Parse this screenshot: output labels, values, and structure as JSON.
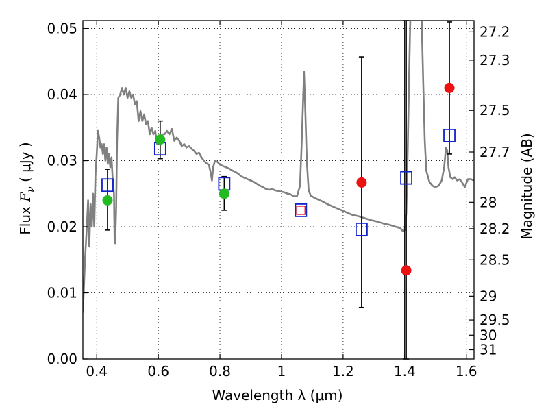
{
  "chart_data": {
    "type": "scatter",
    "title": "",
    "xlabel": "Wavelength  λ (μm)",
    "ylabel": "Flux  F_ν  ( μJy )",
    "ylabel_parts": {
      "prefix": "Flux  ",
      "var": "F",
      "sub": "ν",
      "units": "  ( μJy )"
    },
    "y2label": "Magnitude (AB)",
    "xlim": [
      0.355,
      1.625
    ],
    "ylim": [
      0.0,
      0.0512
    ],
    "grid": true,
    "x_ticks": [
      0.4,
      0.6,
      0.8,
      1.0,
      1.2,
      1.4,
      1.6
    ],
    "x_tick_labels": [
      "0.4",
      "0.6",
      "0.8",
      "1",
      "1.2",
      "1.4",
      "1.6"
    ],
    "y_ticks": [
      0.0,
      0.01,
      0.02,
      0.03,
      0.04,
      0.05
    ],
    "y_tick_labels": [
      "0.00",
      "0.01",
      "0.02",
      "0.03",
      "0.04",
      "0.05"
    ],
    "mag_ticks": [
      {
        "label": "27.2",
        "flux": 0.0495
      },
      {
        "label": "27.3",
        "flux": 0.0452
      },
      {
        "label": "27.5",
        "flux": 0.0376
      },
      {
        "label": "27.7",
        "flux": 0.0313
      },
      {
        "label": "28",
        "flux": 0.0237
      },
      {
        "label": "28.2",
        "flux": 0.0197
      },
      {
        "label": "28.5",
        "flux": 0.015
      },
      {
        "label": "29",
        "flux": 0.0095
      },
      {
        "label": "29.5",
        "flux": 0.0059
      },
      {
        "label": "30",
        "flux": 0.0036
      },
      {
        "label": "31",
        "flux": 0.0014
      }
    ],
    "series": [
      {
        "name": "observed-optical",
        "color": "#22bb22",
        "marker": "circle",
        "points": [
          {
            "x": 0.435,
            "y": 0.024,
            "yerr": [
              0.0195,
              0.0287
            ]
          },
          {
            "x": 0.606,
            "y": 0.0332,
            "yerr": [
              0.0303,
              0.036
            ]
          },
          {
            "x": 0.814,
            "y": 0.025,
            "yerr": [
              0.0225,
              0.0276
            ]
          }
        ]
      },
      {
        "name": "observed-nir",
        "color": "#ee1111",
        "marker": "circle",
        "points": [
          {
            "x": 1.26,
            "y": 0.0267,
            "yerr": [
              0.0078,
              0.0457
            ]
          },
          {
            "x": 1.405,
            "y": 0.0134,
            "yerr": [
              0.0,
              0.0512
            ]
          },
          {
            "x": 1.545,
            "y": 0.041,
            "yerr": [
              0.031,
              0.051
            ]
          }
        ]
      },
      {
        "name": "observed-1.06",
        "color": "#ee1111",
        "marker": "square-small",
        "points": [
          {
            "x": 1.063,
            "y": 0.0225
          }
        ]
      },
      {
        "name": "model-bandpass",
        "color": "#1122cc",
        "marker": "square-open",
        "points": [
          {
            "x": 0.435,
            "y": 0.0263
          },
          {
            "x": 0.606,
            "y": 0.0318
          },
          {
            "x": 0.814,
            "y": 0.0265
          },
          {
            "x": 1.063,
            "y": 0.0225
          },
          {
            "x": 1.26,
            "y": 0.0196
          },
          {
            "x": 1.405,
            "y": 0.0274
          },
          {
            "x": 1.545,
            "y": 0.0338
          }
        ]
      }
    ],
    "model_spectrum": {
      "color": "#808080",
      "points": [
        [
          0.355,
          0.007
        ],
        [
          0.362,
          0.015
        ],
        [
          0.368,
          0.02
        ],
        [
          0.372,
          0.024
        ],
        [
          0.376,
          0.017
        ],
        [
          0.38,
          0.0235
        ],
        [
          0.384,
          0.02
        ],
        [
          0.388,
          0.025
        ],
        [
          0.392,
          0.02
        ],
        [
          0.396,
          0.028
        ],
        [
          0.4,
          0.031
        ],
        [
          0.404,
          0.0345
        ],
        [
          0.408,
          0.0335
        ],
        [
          0.412,
          0.032
        ],
        [
          0.416,
          0.0325
        ],
        [
          0.42,
          0.031
        ],
        [
          0.424,
          0.0325
        ],
        [
          0.428,
          0.03
        ],
        [
          0.432,
          0.032
        ],
        [
          0.436,
          0.0295
        ],
        [
          0.44,
          0.031
        ],
        [
          0.444,
          0.029
        ],
        [
          0.448,
          0.0305
        ],
        [
          0.452,
          0.027
        ],
        [
          0.456,
          0.025
        ],
        [
          0.458,
          0.018
        ],
        [
          0.46,
          0.0175
        ],
        [
          0.463,
          0.023
        ],
        [
          0.466,
          0.033
        ],
        [
          0.47,
          0.0395
        ],
        [
          0.476,
          0.04
        ],
        [
          0.482,
          0.041
        ],
        [
          0.488,
          0.04
        ],
        [
          0.494,
          0.041
        ],
        [
          0.5,
          0.0395
        ],
        [
          0.506,
          0.0405
        ],
        [
          0.512,
          0.0395
        ],
        [
          0.518,
          0.04
        ],
        [
          0.524,
          0.0385
        ],
        [
          0.53,
          0.039
        ],
        [
          0.536,
          0.036
        ],
        [
          0.542,
          0.0375
        ],
        [
          0.548,
          0.036
        ],
        [
          0.554,
          0.037
        ],
        [
          0.56,
          0.0355
        ],
        [
          0.566,
          0.036
        ],
        [
          0.572,
          0.034
        ],
        [
          0.578,
          0.035
        ],
        [
          0.584,
          0.034
        ],
        [
          0.59,
          0.0345
        ],
        [
          0.596,
          0.0325
        ],
        [
          0.602,
          0.0335
        ],
        [
          0.608,
          0.033
        ],
        [
          0.614,
          0.034
        ],
        [
          0.62,
          0.034
        ],
        [
          0.628,
          0.0345
        ],
        [
          0.636,
          0.034
        ],
        [
          0.644,
          0.0348
        ],
        [
          0.652,
          0.033
        ],
        [
          0.66,
          0.0335
        ],
        [
          0.668,
          0.033
        ],
        [
          0.676,
          0.0322
        ],
        [
          0.684,
          0.0325
        ],
        [
          0.692,
          0.032
        ],
        [
          0.7,
          0.0322
        ],
        [
          0.708,
          0.0318
        ],
        [
          0.716,
          0.0315
        ],
        [
          0.724,
          0.031
        ],
        [
          0.732,
          0.0312
        ],
        [
          0.74,
          0.0305
        ],
        [
          0.748,
          0.03
        ],
        [
          0.756,
          0.0296
        ],
        [
          0.764,
          0.0294
        ],
        [
          0.77,
          0.0282
        ],
        [
          0.774,
          0.027
        ],
        [
          0.778,
          0.029
        ],
        [
          0.784,
          0.03
        ],
        [
          0.792,
          0.0298
        ],
        [
          0.8,
          0.0294
        ],
        [
          0.81,
          0.0292
        ],
        [
          0.82,
          0.029
        ],
        [
          0.83,
          0.0288
        ],
        [
          0.84,
          0.0285
        ],
        [
          0.85,
          0.0283
        ],
        [
          0.86,
          0.028
        ],
        [
          0.87,
          0.0276
        ],
        [
          0.88,
          0.0274
        ],
        [
          0.89,
          0.0272
        ],
        [
          0.9,
          0.027
        ],
        [
          0.91,
          0.0268
        ],
        [
          0.92,
          0.0265
        ],
        [
          0.93,
          0.0262
        ],
        [
          0.94,
          0.026
        ],
        [
          0.95,
          0.0257
        ],
        [
          0.96,
          0.0256
        ],
        [
          0.97,
          0.0257
        ],
        [
          0.98,
          0.0255
        ],
        [
          0.99,
          0.0254
        ],
        [
          1.0,
          0.0253
        ],
        [
          1.01,
          0.0252
        ],
        [
          1.02,
          0.025
        ],
        [
          1.03,
          0.0249
        ],
        [
          1.04,
          0.0246
        ],
        [
          1.05,
          0.0246
        ],
        [
          1.06,
          0.0262
        ],
        [
          1.065,
          0.032
        ],
        [
          1.07,
          0.039
        ],
        [
          1.073,
          0.0435
        ],
        [
          1.077,
          0.038
        ],
        [
          1.082,
          0.03
        ],
        [
          1.088,
          0.0255
        ],
        [
          1.095,
          0.0247
        ],
        [
          1.11,
          0.0243
        ],
        [
          1.13,
          0.0239
        ],
        [
          1.15,
          0.0234
        ],
        [
          1.17,
          0.023
        ],
        [
          1.19,
          0.0226
        ],
        [
          1.21,
          0.0222
        ],
        [
          1.23,
          0.0218
        ],
        [
          1.25,
          0.0216
        ],
        [
          1.27,
          0.0213
        ],
        [
          1.29,
          0.021
        ],
        [
          1.31,
          0.0208
        ],
        [
          1.33,
          0.0205
        ],
        [
          1.35,
          0.0203
        ],
        [
          1.37,
          0.02
        ],
        [
          1.385,
          0.0198
        ],
        [
          1.395,
          0.0193
        ],
        [
          1.4,
          0.0195
        ],
        [
          1.405,
          0.022
        ],
        [
          1.41,
          0.032
        ],
        [
          1.414,
          0.042
        ],
        [
          1.418,
          0.0512
        ]
      ],
      "tail_points": [
        [
          1.455,
          0.0512
        ],
        [
          1.46,
          0.042
        ],
        [
          1.465,
          0.033
        ],
        [
          1.47,
          0.0285
        ],
        [
          1.48,
          0.0268
        ],
        [
          1.49,
          0.0262
        ],
        [
          1.5,
          0.026
        ],
        [
          1.51,
          0.0262
        ],
        [
          1.52,
          0.027
        ],
        [
          1.528,
          0.029
        ],
        [
          1.534,
          0.032
        ],
        [
          1.538,
          0.0315
        ],
        [
          1.542,
          0.029
        ],
        [
          1.548,
          0.0275
        ],
        [
          1.556,
          0.0272
        ],
        [
          1.562,
          0.0275
        ],
        [
          1.57,
          0.027
        ],
        [
          1.578,
          0.0272
        ],
        [
          1.585,
          0.0268
        ],
        [
          1.595,
          0.026
        ],
        [
          1.605,
          0.0272
        ],
        [
          1.615,
          0.0272
        ],
        [
          1.625,
          0.027
        ]
      ]
    },
    "vertical_line": {
      "x": 1.4,
      "color": "#000000"
    }
  }
}
